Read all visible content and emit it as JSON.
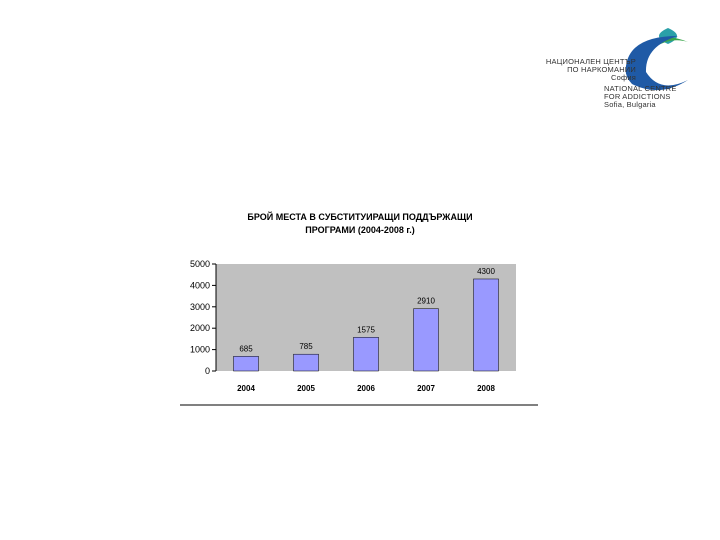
{
  "logo": {
    "bg_line1": "НАЦИОНАЛЕН ЦЕНТЪР",
    "bg_line2": "ПО НАРКОМАНИИ",
    "bg_line3": "София",
    "en_line1": "NATIONAL CENTRE",
    "en_line2": "FOR ADDICTIONS",
    "en_line3": "Sofia, Bulgaria",
    "colors": {
      "blue": "#1f5aa6",
      "green": "#3aa64a",
      "teal": "#2aa0a8"
    }
  },
  "chart_data": {
    "type": "bar",
    "title_line1": "БРОЙ МЕСТА В СУБСТИТУИРАЩИ ПОДДЪРЖАЩИ",
    "title_line2": "ПРОГРАМИ (2004-2008 г.)",
    "categories": [
      "2004",
      "2005",
      "2006",
      "2007",
      "2008"
    ],
    "values": [
      685,
      785,
      1575,
      2910,
      4300
    ],
    "data_labels": [
      "685",
      "785",
      "1575",
      "2910",
      "4300"
    ],
    "y_ticks": [
      0,
      1000,
      2000,
      3000,
      4000,
      5000
    ],
    "y_tick_labels": [
      "0",
      "1000",
      "2000",
      "3000",
      "4000",
      "5000"
    ],
    "ylim": [
      0,
      5000
    ],
    "grid": false,
    "colors": {
      "bar": "#9999ff",
      "plot_bg": "#c0c0c0",
      "bar_border": "#000000"
    }
  }
}
